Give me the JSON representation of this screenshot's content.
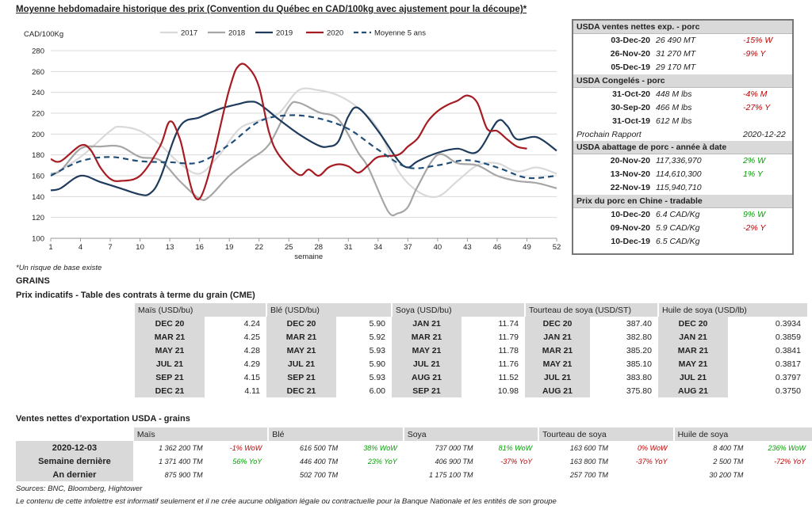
{
  "title": "Moyenne hebdomadaire historique des prix (Convention du Québec en CAD/100kg avec ajustement pour la découpe)*",
  "note": "*Un risque de base existe",
  "grains_heading": "GRAINS",
  "futures_title": "Prix indicatifs - Table des contrats à terme du grain (CME)",
  "exports_title": "Ventes nettes d'exportation USDA - grains",
  "sources": "Sources: BNC, Bloomberg, Hightower",
  "disclaimer": "Le contenu de cette infolettre est informatif seulement et il ne crée aucune obligation légale ou contractuelle pour la Banque Nationale et les entités de son groupe",
  "chart_data": {
    "type": "line",
    "ylabel": "CAD/100Kg",
    "xlabel": "semaine",
    "ylim": [
      100,
      280
    ],
    "yticks": [
      100,
      120,
      140,
      160,
      180,
      200,
      220,
      240,
      260,
      280
    ],
    "xlim": [
      1,
      52
    ],
    "xticks": [
      1,
      4,
      7,
      10,
      13,
      16,
      19,
      22,
      25,
      28,
      31,
      34,
      37,
      40,
      43,
      46,
      49,
      52
    ],
    "grid": "horizontal",
    "legend": "top",
    "series": [
      {
        "name": "2017",
        "color": "#d9d9d9",
        "dash": false,
        "x": [
          1,
          4,
          7,
          8,
          10,
          12,
          14,
          16,
          18,
          20,
          22,
          24,
          26,
          28,
          30,
          32,
          34,
          36,
          38,
          40,
          42,
          44,
          46,
          48,
          50,
          52
        ],
        "y": [
          160,
          178,
          203,
          207,
          203,
          190,
          172,
          162,
          180,
          205,
          213,
          220,
          242,
          242,
          237,
          225,
          205,
          165,
          145,
          140,
          155,
          170,
          172,
          164,
          168,
          162
        ]
      },
      {
        "name": "2018",
        "color": "#a6a6a6",
        "dash": false,
        "x": [
          1,
          2,
          4,
          6,
          8,
          10,
          12,
          14,
          16,
          17,
          19,
          21,
          23,
          25,
          26,
          28,
          30,
          32,
          33,
          35,
          36,
          37,
          38,
          40,
          42,
          44,
          46,
          48,
          50,
          52
        ],
        "y": [
          162,
          165,
          186,
          188,
          188,
          178,
          175,
          155,
          138,
          140,
          160,
          175,
          190,
          226,
          230,
          221,
          214,
          182,
          168,
          126,
          124,
          130,
          150,
          180,
          172,
          170,
          160,
          155,
          153,
          148
        ]
      },
      {
        "name": "2019",
        "color": "#1f3b5c",
        "dash": false,
        "x": [
          1,
          2,
          4,
          6,
          8,
          10,
          11,
          12,
          14,
          16,
          18,
          20,
          21,
          22,
          24,
          26,
          28,
          29,
          30,
          31,
          32,
          34,
          36,
          37,
          38,
          40,
          42,
          44,
          46,
          47,
          48,
          50,
          52
        ],
        "y": [
          146,
          148,
          160,
          154,
          148,
          142,
          143,
          157,
          207,
          216,
          224,
          229,
          231,
          229,
          214,
          200,
          189,
          188,
          193,
          217,
          225,
          203,
          175,
          168,
          174,
          182,
          186,
          183,
          212,
          208,
          195,
          197,
          184
        ]
      },
      {
        "name": "2020",
        "color": "#a61c22",
        "dash": false,
        "x": [
          1,
          2,
          4,
          5,
          6,
          7,
          8,
          10,
          12,
          13,
          14,
          16,
          19,
          20,
          21,
          22,
          23,
          24,
          26,
          27,
          28,
          29,
          30,
          31,
          32,
          33,
          34,
          36,
          37,
          38,
          39,
          40,
          41,
          42,
          43,
          44,
          45,
          46,
          47,
          48,
          49
        ],
        "y": [
          176,
          174,
          189,
          185,
          168,
          157,
          155,
          160,
          188,
          212,
          196,
          138,
          243,
          266,
          263,
          245,
          202,
          180,
          161,
          166,
          160,
          168,
          171,
          169,
          163,
          170,
          178,
          180,
          188,
          196,
          212,
          222,
          228,
          232,
          237,
          230,
          205,
          203,
          195,
          188,
          186
        ]
      },
      {
        "name": "Moyenne 5 ans",
        "color": "#1f4e79",
        "dash": true,
        "x": [
          1,
          4,
          7,
          10,
          13,
          16,
          19,
          22,
          25,
          28,
          31,
          34,
          37,
          40,
          43,
          46,
          49,
          52
        ],
        "y": [
          160,
          174,
          178,
          174,
          173,
          173,
          190,
          212,
          218,
          215,
          205,
          185,
          168,
          170,
          175,
          168,
          158,
          160
        ]
      }
    ]
  },
  "usda": {
    "pork_sales": {
      "title": "USDA ventes nettes exp. - porc",
      "rows": [
        {
          "date": "03-Dec-20",
          "value": "26 490  MT",
          "change": "-15% W",
          "tone": "neg"
        },
        {
          "date": "26-Nov-20",
          "value": "31 270  MT",
          "change": "-9% Y",
          "tone": "neg"
        },
        {
          "date": "05-Dec-19",
          "value": "29 170  MT",
          "change": "",
          "tone": ""
        }
      ]
    },
    "frozen": {
      "title": "USDA Congelés - porc",
      "rows": [
        {
          "date": "31-Oct-20",
          "value": "448 M lbs",
          "change": "-4% M",
          "tone": "neg"
        },
        {
          "date": "30-Sep-20",
          "value": "466 M lbs",
          "change": "-27% Y",
          "tone": "neg"
        },
        {
          "date": "31-Oct-19",
          "value": "612 M lbs",
          "change": "",
          "tone": ""
        }
      ],
      "next_report_label": "Prochain Rapport",
      "next_report_date": "2020-12-22"
    },
    "slaughter": {
      "title": "USDA abattage de porc - année à date",
      "rows": [
        {
          "date": "20-Nov-20",
          "value": "117,336,970",
          "change": "2% W",
          "tone": "pos"
        },
        {
          "date": "13-Nov-20",
          "value": "114,610,300",
          "change": "1% Y",
          "tone": "pos"
        },
        {
          "date": "22-Nov-19",
          "value": "115,940,710",
          "change": "",
          "tone": ""
        }
      ]
    },
    "china": {
      "title": "Prix du porc en Chine - tradable",
      "rows": [
        {
          "date": "10-Dec-20",
          "value": "6.4 CAD/Kg",
          "change": "9% W",
          "tone": "pos"
        },
        {
          "date": "09-Nov-20",
          "value": "5.9 CAD/Kg",
          "change": "-2% Y",
          "tone": "neg"
        },
        {
          "date": "10-Dec-19",
          "value": "6.5 CAD/Kg",
          "change": "",
          "tone": ""
        }
      ]
    }
  },
  "futures": {
    "headers": [
      "Maïs (USD/bu)",
      "Blé (USD/bu)",
      "Soya (USD/bu)",
      "Tourteau de soya (USD/ST)",
      "Huile de soya (USD/lb)"
    ],
    "rows": [
      [
        [
          "DEC 20",
          "4.24"
        ],
        [
          "DEC 20",
          "5.90"
        ],
        [
          "JAN 21",
          "11.74"
        ],
        [
          "DEC 20",
          "387.40"
        ],
        [
          "DEC 20",
          "0.3934"
        ]
      ],
      [
        [
          "MAR 21",
          "4.25"
        ],
        [
          "MAR 21",
          "5.92"
        ],
        [
          "MAR 21",
          "11.79"
        ],
        [
          "JAN 21",
          "382.80"
        ],
        [
          "JAN 21",
          "0.3859"
        ]
      ],
      [
        [
          "MAY 21",
          "4.28"
        ],
        [
          "MAY 21",
          "5.93"
        ],
        [
          "MAY 21",
          "11.78"
        ],
        [
          "MAR 21",
          "385.20"
        ],
        [
          "MAR 21",
          "0.3841"
        ]
      ],
      [
        [
          "JUL 21",
          "4.29"
        ],
        [
          "JUL 21",
          "5.90"
        ],
        [
          "JUL 21",
          "11.76"
        ],
        [
          "MAY 21",
          "385.10"
        ],
        [
          "MAY 21",
          "0.3817"
        ]
      ],
      [
        [
          "SEP 21",
          "4.15"
        ],
        [
          "SEP 21",
          "5.93"
        ],
        [
          "AUG 21",
          "11.52"
        ],
        [
          "JUL 21",
          "383.80"
        ],
        [
          "JUL 21",
          "0.3797"
        ]
      ],
      [
        [
          "DEC 21",
          "4.11"
        ],
        [
          "DEC 21",
          "6.00"
        ],
        [
          "SEP 21",
          "10.98"
        ],
        [
          "AUG 21",
          "375.80"
        ],
        [
          "AUG 21",
          "0.3750"
        ]
      ]
    ]
  },
  "exports": {
    "headers": [
      "Maïs",
      "Blé",
      "Soya",
      "Tourteau de soya",
      "Huile de soya"
    ],
    "rows": [
      {
        "label": "2020-12-03",
        "cells": [
          [
            "1 362 200 TM",
            "-1% WoW",
            "neg"
          ],
          [
            "616 500 TM",
            "38% WoW",
            "pos"
          ],
          [
            "737 000 TM",
            "81% WoW",
            "pos"
          ],
          [
            "163 600 TM",
            "0% WoW",
            "neg"
          ],
          [
            "8 400 TM",
            "236% WoW",
            "pos"
          ]
        ]
      },
      {
        "label": "Semaine dernière",
        "cells": [
          [
            "1 371 400 TM",
            "56% YoY",
            "pos"
          ],
          [
            "446 400 TM",
            "23% YoY",
            "pos"
          ],
          [
            "406 900 TM",
            "-37% YoY",
            "neg"
          ],
          [
            "163 800 TM",
            "-37% YoY",
            "neg"
          ],
          [
            "2 500 TM",
            "-72% YoY",
            "neg"
          ]
        ]
      },
      {
        "label": "An dernier",
        "cells": [
          [
            "875 900 TM",
            "",
            ""
          ],
          [
            "502 700 TM",
            "",
            ""
          ],
          [
            "1 175 100 TM",
            "",
            ""
          ],
          [
            "257 700 TM",
            "",
            ""
          ],
          [
            "30 200 TM",
            "",
            ""
          ]
        ]
      }
    ]
  }
}
